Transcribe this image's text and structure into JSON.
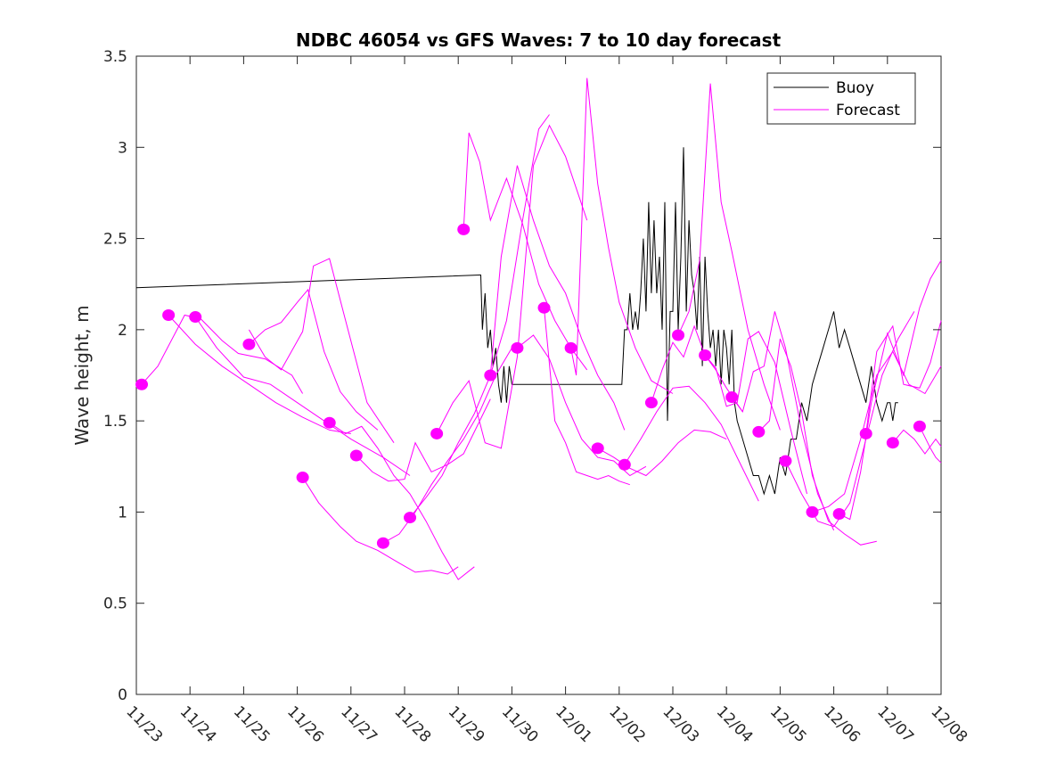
{
  "chart_data": {
    "type": "line",
    "title": "NDBC 46054 vs GFS Waves: 7 to 10 day forecast",
    "xlabel": "",
    "ylabel": "Wave height, m",
    "xlim_days": [
      0,
      15
    ],
    "x_origin_label": "11/23",
    "ylim": [
      0,
      3.5
    ],
    "yticks": [
      0,
      0.5,
      1,
      1.5,
      2,
      2.5,
      3,
      3.5
    ],
    "ytick_labels": [
      "0",
      "0.5",
      "1",
      "1.5",
      "2",
      "2.5",
      "3",
      "3.5"
    ],
    "xticks": [
      0,
      1,
      2,
      3,
      4,
      5,
      6,
      7,
      8,
      9,
      10,
      11,
      12,
      13,
      14,
      15
    ],
    "xtick_labels": [
      "11/23",
      "11/24",
      "11/25",
      "11/26",
      "11/27",
      "11/28",
      "11/29",
      "11/30",
      "12/01",
      "12/02",
      "12/03",
      "12/04",
      "12/05",
      "12/06",
      "12/07",
      "12/08"
    ],
    "grid": false,
    "legend": {
      "placement": "top-right",
      "entries": [
        {
          "name": "Buoy",
          "color": "#000000"
        },
        {
          "name": "Forecast",
          "color": "#ff00ff"
        }
      ]
    },
    "colors": {
      "buoy": "#000000",
      "forecast": "#ff00ff",
      "axis": "#262626"
    },
    "series": [
      {
        "name": "Buoy",
        "x": [
          0,
          6.4,
          6.42,
          6.45,
          6.5,
          6.55,
          6.6,
          6.65,
          6.7,
          6.75,
          6.8,
          6.85,
          6.9,
          6.95,
          7.0,
          7.05,
          7.1,
          9.05,
          9.1,
          9.15,
          9.2,
          9.25,
          9.3,
          9.35,
          9.4,
          9.45,
          9.5,
          9.55,
          9.6,
          9.65,
          9.7,
          9.75,
          9.8,
          9.85,
          9.9,
          9.95,
          10.0,
          10.05,
          10.1,
          10.15,
          10.2,
          10.25,
          10.3,
          10.35,
          10.4,
          10.45,
          10.5,
          10.55,
          10.6,
          10.65,
          10.7,
          10.75,
          10.8,
          10.85,
          10.9,
          10.95,
          11.0,
          11.05,
          11.1,
          11.15,
          11.2,
          11.3,
          11.4,
          11.5,
          11.6,
          11.7,
          11.8,
          11.9,
          12.0,
          12.1,
          12.2,
          12.3,
          12.4,
          12.5,
          12.6,
          12.7,
          12.8,
          12.9,
          13.0,
          13.1,
          13.2,
          13.3,
          13.4,
          13.5,
          13.6,
          13.7,
          13.8,
          13.9,
          14.0,
          14.05,
          14.1,
          14.15,
          14.2
        ],
        "y": [
          2.23,
          2.3,
          2.3,
          2.0,
          2.2,
          1.9,
          2.0,
          1.8,
          1.9,
          1.7,
          1.6,
          1.8,
          1.6,
          1.8,
          1.7,
          1.7,
          1.7,
          1.7,
          2.0,
          2.0,
          2.2,
          2.0,
          2.1,
          2.0,
          2.2,
          2.5,
          2.1,
          2.7,
          2.2,
          2.6,
          2.2,
          2.4,
          2.0,
          2.7,
          1.5,
          2.1,
          2.1,
          2.7,
          2.0,
          2.4,
          3.0,
          2.1,
          2.6,
          2.3,
          2.2,
          2.0,
          2.4,
          1.8,
          2.4,
          2.1,
          1.9,
          2.0,
          1.8,
          2.0,
          1.7,
          2.0,
          1.9,
          1.7,
          2.0,
          1.6,
          1.5,
          1.4,
          1.3,
          1.2,
          1.2,
          1.1,
          1.2,
          1.1,
          1.3,
          1.2,
          1.4,
          1.4,
          1.6,
          1.5,
          1.7,
          1.8,
          1.9,
          2.0,
          2.1,
          1.9,
          2.0,
          1.9,
          1.8,
          1.7,
          1.6,
          1.8,
          1.6,
          1.5,
          1.6,
          1.6,
          1.5,
          1.6,
          1.6
        ]
      },
      {
        "name": "Forecast",
        "segment": 1,
        "x": [
          0.1,
          0.4,
          0.9,
          1.2,
          1.6,
          1.9,
          2.4,
          2.9,
          3.1
        ],
        "y": [
          1.7,
          1.8,
          2.08,
          2.06,
          1.94,
          1.87,
          1.84,
          1.75,
          1.65
        ]
      },
      {
        "name": "Forecast",
        "segment": 2,
        "x": [
          0.6,
          1.1,
          1.6,
          2.1,
          2.6,
          3.1,
          3.6,
          4.0
        ],
        "y": [
          2.08,
          1.92,
          1.8,
          1.7,
          1.6,
          1.52,
          1.45,
          1.43
        ]
      },
      {
        "name": "Forecast",
        "segment": 3,
        "x": [
          1.1,
          1.5,
          2.0,
          2.5,
          3.0,
          3.5,
          4.0,
          4.6,
          5.1
        ],
        "y": [
          2.07,
          1.9,
          1.74,
          1.7,
          1.6,
          1.5,
          1.4,
          1.3,
          1.2
        ]
      },
      {
        "name": "Forecast",
        "segment": 4,
        "x": [
          2.1,
          2.4,
          2.7,
          3.0,
          3.2,
          3.5,
          3.8,
          4.1,
          4.5
        ],
        "y": [
          1.92,
          2.0,
          2.04,
          2.15,
          2.22,
          1.88,
          1.66,
          1.55,
          1.45
        ]
      },
      {
        "name": "Forecast",
        "segment": 5,
        "x": [
          2.1,
          2.4,
          2.7,
          3.1,
          3.3,
          3.6,
          3.9,
          4.3,
          4.8
        ],
        "y": [
          2.0,
          1.85,
          1.78,
          1.99,
          2.35,
          2.39,
          2.05,
          1.6,
          1.38
        ]
      },
      {
        "name": "Forecast",
        "segment": 6,
        "x": [
          3.1,
          3.4,
          3.8,
          4.1,
          4.5,
          4.9,
          5.2,
          5.5,
          5.8,
          6.0
        ],
        "y": [
          1.19,
          1.05,
          0.92,
          0.84,
          0.79,
          0.72,
          0.67,
          0.68,
          0.66,
          0.7
        ]
      },
      {
        "name": "Forecast",
        "segment": 7,
        "x": [
          3.6,
          3.9,
          4.2,
          4.5,
          4.8,
          5.1,
          5.4,
          5.7,
          6.0,
          6.3
        ],
        "y": [
          1.49,
          1.43,
          1.47,
          1.35,
          1.2,
          1.1,
          0.95,
          0.78,
          0.63,
          0.7
        ]
      },
      {
        "name": "Forecast",
        "segment": 8,
        "x": [
          4.1,
          4.4,
          4.7,
          5.0,
          5.2,
          5.5,
          5.8,
          6.1,
          6.4,
          6.6
        ],
        "y": [
          1.31,
          1.22,
          1.17,
          1.18,
          1.38,
          1.22,
          1.26,
          1.32,
          1.5,
          1.62
        ]
      },
      {
        "name": "Forecast",
        "segment": 9,
        "x": [
          4.6,
          4.9,
          5.2,
          5.5,
          5.8,
          6.1,
          6.4,
          6.7,
          7.0
        ],
        "y": [
          0.83,
          0.88,
          1.0,
          1.15,
          1.28,
          1.4,
          1.55,
          1.75,
          1.9
        ]
      },
      {
        "name": "Forecast",
        "segment": 10,
        "x": [
          5.1,
          5.4,
          5.7,
          6.0,
          6.3,
          6.6,
          6.9,
          7.2,
          7.5,
          7.7
        ],
        "y": [
          0.97,
          1.08,
          1.2,
          1.38,
          1.54,
          1.75,
          2.05,
          2.6,
          3.1,
          3.18
        ]
      },
      {
        "name": "Forecast",
        "segment": 11,
        "x": [
          5.6,
          5.9,
          6.2,
          6.5,
          6.8,
          7.1,
          7.4,
          7.7,
          8.0,
          8.4
        ],
        "y": [
          1.43,
          1.6,
          1.72,
          1.38,
          1.35,
          1.85,
          2.9,
          3.12,
          2.95,
          2.6
        ]
      },
      {
        "name": "Forecast",
        "segment": 12,
        "x": [
          6.1,
          6.2,
          6.4,
          6.6,
          6.9,
          7.2,
          7.5,
          7.8,
          8.1,
          8.4
        ],
        "y": [
          2.55,
          3.08,
          2.92,
          2.6,
          2.83,
          2.58,
          2.25,
          2.05,
          1.9,
          1.78
        ]
      },
      {
        "name": "Forecast",
        "segment": 13,
        "x": [
          6.6,
          6.8,
          7.1,
          7.4,
          7.7,
          8.0,
          8.3,
          8.6,
          8.9,
          9.1
        ],
        "y": [
          1.75,
          2.4,
          2.9,
          2.6,
          2.35,
          2.2,
          1.95,
          1.75,
          1.6,
          1.45
        ]
      },
      {
        "name": "Forecast",
        "segment": 14,
        "x": [
          7.1,
          7.4,
          7.7,
          8.0,
          8.3,
          8.6,
          8.9,
          9.2,
          9.5
        ],
        "y": [
          1.9,
          1.97,
          1.84,
          1.6,
          1.4,
          1.3,
          1.28,
          1.2,
          1.25
        ]
      },
      {
        "name": "Forecast",
        "segment": 15,
        "x": [
          7.6,
          7.8,
          8.0,
          8.2,
          8.4,
          8.6,
          8.8,
          9.0,
          9.2
        ],
        "y": [
          2.12,
          1.5,
          1.38,
          1.22,
          1.2,
          1.18,
          1.2,
          1.17,
          1.15
        ]
      },
      {
        "name": "Forecast",
        "segment": 16,
        "x": [
          8.1,
          8.2,
          8.4,
          8.6,
          8.8,
          9.0,
          9.3,
          9.6,
          10.0
        ],
        "y": [
          1.9,
          1.75,
          3.38,
          2.8,
          2.45,
          2.15,
          1.9,
          1.72,
          1.65
        ]
      },
      {
        "name": "Forecast",
        "segment": 17,
        "x": [
          8.6,
          8.9,
          9.2,
          9.5,
          9.8,
          10.1,
          10.4,
          10.7,
          11.0
        ],
        "y": [
          1.35,
          1.3,
          1.24,
          1.2,
          1.28,
          1.38,
          1.45,
          1.44,
          1.4
        ]
      },
      {
        "name": "Forecast",
        "segment": 18,
        "x": [
          9.1,
          9.4,
          9.7,
          10.0,
          10.3,
          10.6,
          10.9,
          11.2,
          11.6
        ],
        "y": [
          1.26,
          1.4,
          1.55,
          1.68,
          1.69,
          1.6,
          1.48,
          1.3,
          1.06
        ]
      },
      {
        "name": "Forecast",
        "segment": 19,
        "x": [
          9.6,
          9.8,
          10.0,
          10.2,
          10.4,
          10.6,
          10.8,
          11.0,
          11.3
        ],
        "y": [
          1.6,
          1.78,
          1.93,
          1.85,
          2.02,
          1.86,
          1.78,
          1.68,
          1.55
        ]
      },
      {
        "name": "Forecast",
        "segment": 20,
        "x": [
          10.1,
          10.3,
          10.5,
          10.7,
          10.9,
          11.1,
          11.4,
          11.7,
          12.0
        ],
        "y": [
          1.97,
          2.1,
          2.38,
          3.35,
          2.7,
          2.43,
          2.0,
          1.7,
          1.45
        ]
      },
      {
        "name": "Forecast",
        "segment": 21,
        "x": [
          10.6,
          10.8,
          11.0,
          11.2,
          11.4,
          11.6,
          11.9,
          12.2,
          12.5
        ],
        "y": [
          1.86,
          1.79,
          1.58,
          1.6,
          1.95,
          1.99,
          1.82,
          1.45,
          1.1
        ]
      },
      {
        "name": "Forecast",
        "segment": 22,
        "x": [
          11.1,
          11.3,
          11.5,
          11.7,
          11.9,
          12.1,
          12.4,
          12.7,
          13.0
        ],
        "y": [
          1.63,
          1.55,
          1.77,
          1.8,
          2.1,
          1.9,
          1.45,
          1.1,
          0.9
        ]
      },
      {
        "name": "Forecast",
        "segment": 23,
        "x": [
          11.6,
          11.8,
          12.0,
          12.2,
          12.4,
          12.6,
          12.9,
          13.2,
          13.5,
          13.8
        ],
        "y": [
          1.44,
          1.5,
          1.95,
          1.8,
          1.55,
          1.2,
          0.95,
          0.88,
          0.82,
          0.84
        ]
      },
      {
        "name": "Forecast",
        "segment": 24,
        "x": [
          12.1,
          12.4,
          12.7,
          13.0,
          13.3,
          13.6,
          13.9,
          14.2,
          14.5
        ],
        "y": [
          1.28,
          1.1,
          0.95,
          0.92,
          1.05,
          1.4,
          1.75,
          1.95,
          2.1
        ]
      },
      {
        "name": "Forecast",
        "segment": 25,
        "x": [
          12.6,
          12.9,
          13.2,
          13.5,
          13.8,
          14.1,
          14.4,
          14.7,
          15.0
        ],
        "y": [
          1.0,
          1.03,
          1.1,
          1.4,
          1.75,
          1.88,
          1.7,
          1.65,
          1.8
        ]
      },
      {
        "name": "Forecast",
        "segment": 26,
        "x": [
          13.1,
          13.3,
          13.5,
          13.7,
          14.0,
          14.3,
          14.6,
          14.8,
          15.0
        ],
        "y": [
          0.99,
          0.96,
          1.22,
          1.6,
          1.98,
          1.75,
          2.12,
          2.28,
          2.38
        ]
      },
      {
        "name": "Forecast",
        "segment": 27,
        "x": [
          13.6,
          13.8,
          14.1,
          14.3,
          14.6,
          14.8,
          15.0
        ],
        "y": [
          1.43,
          1.88,
          2.02,
          1.7,
          1.68,
          1.82,
          2.05
        ]
      },
      {
        "name": "Forecast",
        "segment": 28,
        "x": [
          14.1,
          14.3,
          14.5,
          14.7,
          14.9,
          15.0
        ],
        "y": [
          1.38,
          1.45,
          1.4,
          1.32,
          1.4,
          1.36
        ]
      },
      {
        "name": "Forecast",
        "segment": 29,
        "x": [
          14.6,
          14.8,
          14.9,
          15.0
        ],
        "y": [
          1.47,
          1.35,
          1.3,
          1.27
        ]
      }
    ],
    "markers": {
      "series": "Forecast",
      "style": "filled-circle",
      "x": [
        0.1,
        0.6,
        1.1,
        2.1,
        3.1,
        3.6,
        4.1,
        4.6,
        5.1,
        5.6,
        6.1,
        6.6,
        7.1,
        7.6,
        8.1,
        8.6,
        9.1,
        9.6,
        10.1,
        10.6,
        11.1,
        11.6,
        12.1,
        12.6,
        13.1,
        13.6,
        14.1,
        14.6
      ],
      "y": [
        1.7,
        2.08,
        2.07,
        1.92,
        1.19,
        1.49,
        1.31,
        0.83,
        0.97,
        1.43,
        2.55,
        1.75,
        1.9,
        2.12,
        1.9,
        1.35,
        1.26,
        1.6,
        1.97,
        1.86,
        1.63,
        1.44,
        1.28,
        1.0,
        0.99,
        1.43,
        1.38,
        1.47
      ]
    }
  }
}
